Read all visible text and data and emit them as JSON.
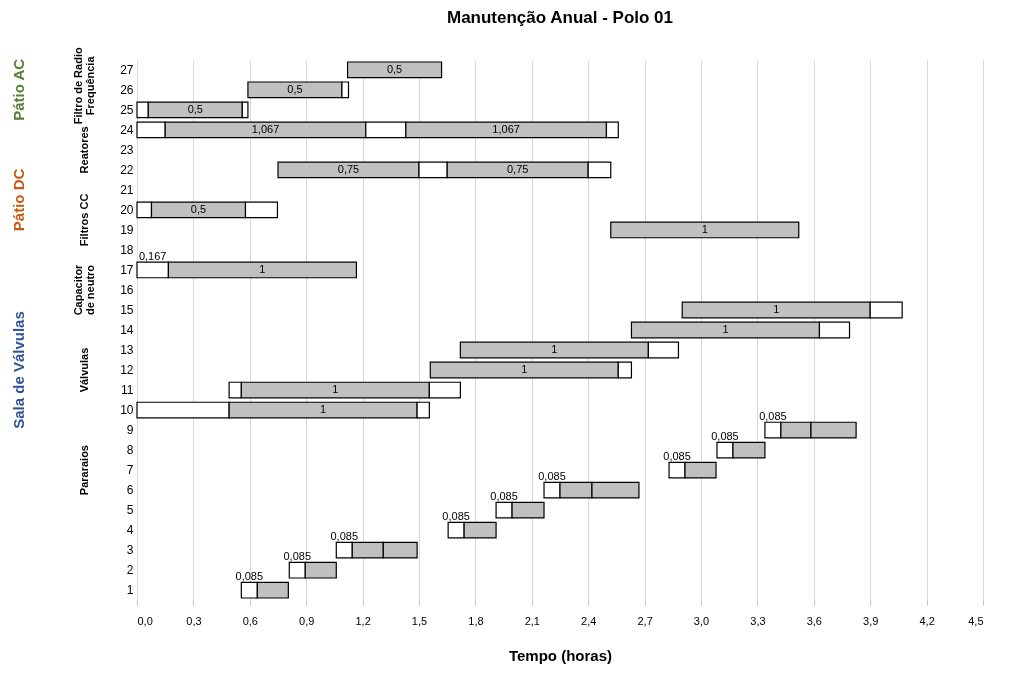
{
  "chart_data": {
    "type": "bar",
    "orientation": "horizontal",
    "title": "Manutenção Anual - Polo 01",
    "xlabel": "Tempo (horas)",
    "categories": [
      "27",
      "26",
      "25",
      "24",
      "23",
      "22",
      "21",
      "20",
      "19",
      "18",
      "17",
      "16",
      "15",
      "14",
      "13",
      "12",
      "11",
      "10",
      "9",
      "8",
      "7",
      "6",
      "5",
      "4",
      "3",
      "2",
      "1"
    ],
    "series": [
      {
        "color": "#ffffff",
        "base": [
          null,
          null,
          0,
          0,
          null,
          null,
          null,
          0,
          null,
          null,
          0,
          null,
          null,
          null,
          null,
          null,
          0.49,
          0,
          3.34,
          3.085,
          2.83,
          2.165,
          1.91,
          1.655,
          1.06,
          0.81,
          0.555
        ],
        "values": [
          null,
          null,
          0.06,
          0.15,
          null,
          null,
          null,
          0.077,
          null,
          null,
          0.167,
          null,
          null,
          null,
          null,
          null,
          0.065,
          0.49,
          0.085,
          0.085,
          0.085,
          0.085,
          0.085,
          0.085,
          0.085,
          0.085,
          0.085
        ],
        "value_labels": [
          null,
          null,
          null,
          null,
          null,
          null,
          null,
          null,
          null,
          null,
          "0,167",
          null,
          null,
          null,
          null,
          null,
          null,
          null,
          "0,085",
          "0,085",
          "0,085",
          "0,085",
          "0,085",
          "0,085",
          "0,085",
          "0,085",
          "0,085"
        ]
      },
      {
        "color": "#c0c0c0",
        "base": [
          1.12,
          0.59,
          0.06,
          0.15,
          null,
          0.75,
          null,
          0.077,
          2.52,
          null,
          0.167,
          null,
          2.9,
          2.63,
          1.72,
          1.56,
          0.555,
          0.49,
          3.425,
          3.17,
          2.915,
          2.25,
          1.995,
          1.74,
          1.145,
          0.895,
          0.64
        ],
        "values": [
          0.5,
          0.5,
          0.5,
          1.067,
          null,
          0.75,
          null,
          0.5,
          1,
          null,
          1,
          null,
          1,
          1,
          1,
          1,
          1,
          1,
          0.16,
          0.17,
          0.165,
          0.17,
          0.17,
          0.17,
          0.165,
          0.165,
          0.165
        ],
        "value_labels": [
          "0,5",
          "0,5",
          "0,5",
          "1,067",
          null,
          "0,75",
          null,
          "0,5",
          "1",
          null,
          "1",
          null,
          "1",
          "1",
          "1",
          "1",
          "1",
          "1",
          null,
          null,
          null,
          null,
          null,
          null,
          null,
          null,
          null
        ]
      },
      {
        "color": "#c0c0c0",
        "base": [
          null,
          null,
          null,
          null,
          null,
          null,
          null,
          null,
          null,
          null,
          null,
          null,
          null,
          null,
          null,
          null,
          null,
          null,
          3.585,
          null,
          null,
          2.42,
          null,
          null,
          1.31,
          null,
          null
        ],
        "values": [
          null,
          null,
          null,
          null,
          null,
          null,
          null,
          null,
          null,
          null,
          null,
          null,
          null,
          null,
          null,
          null,
          null,
          null,
          0.24,
          null,
          null,
          0.25,
          null,
          null,
          0.18,
          null,
          null
        ]
      },
      {
        "color": "#ffffff",
        "base": [
          null,
          1.09,
          0.56,
          1.217,
          null,
          1.5,
          null,
          0.577,
          null,
          null,
          null,
          null,
          3.9,
          3.63,
          2.72,
          2.56,
          1.555,
          1.49,
          null,
          null,
          null,
          null,
          null,
          null,
          null,
          null,
          null
        ],
        "values": [
          null,
          0.035,
          0.03,
          0.213,
          null,
          0.15,
          null,
          0.17,
          null,
          null,
          null,
          null,
          0.17,
          0.16,
          0.16,
          0.07,
          0.165,
          0.065,
          null,
          null,
          null,
          null,
          null,
          null,
          null,
          null,
          null
        ]
      },
      {
        "color": "#c0c0c0",
        "base": [
          null,
          null,
          null,
          1.43,
          null,
          1.65,
          null,
          null,
          null,
          null,
          null,
          null,
          null,
          null,
          null,
          null,
          null,
          null,
          null,
          null,
          null,
          null,
          null,
          null,
          null,
          null,
          null
        ],
        "values": [
          null,
          null,
          null,
          1.067,
          null,
          0.75,
          null,
          null,
          null,
          null,
          null,
          null,
          null,
          null,
          null,
          null,
          null,
          null,
          null,
          null,
          null,
          null,
          null,
          null,
          null,
          null,
          null
        ],
        "value_labels": [
          null,
          null,
          null,
          "1,067",
          null,
          "0,75",
          null,
          null,
          null,
          null,
          null,
          null,
          null,
          null,
          null,
          null,
          null,
          null,
          null,
          null,
          null,
          null,
          null,
          null,
          null,
          null,
          null
        ]
      },
      {
        "color": "#ffffff",
        "base": [
          null,
          null,
          null,
          2.497,
          null,
          2.4,
          null,
          null,
          null,
          null,
          null,
          null,
          null,
          null,
          null,
          null,
          null,
          null,
          null,
          null,
          null,
          null,
          null,
          null,
          null,
          null,
          null
        ],
        "values": [
          null,
          null,
          null,
          0.063,
          null,
          0.12,
          null,
          null,
          null,
          null,
          null,
          null,
          null,
          null,
          null,
          null,
          null,
          null,
          null,
          null,
          null,
          null,
          null,
          null,
          null,
          null,
          null
        ]
      }
    ],
    "xlim": [
      0,
      4.5
    ],
    "xticks": [
      {
        "value": 0,
        "label": "0,0"
      },
      {
        "value": 0.3,
        "label": "0,3"
      },
      {
        "value": 0.6,
        "label": "0,6"
      },
      {
        "value": 0.9,
        "label": "0,9"
      },
      {
        "value": 1.2,
        "label": "1,2"
      },
      {
        "value": 1.5,
        "label": "1,5"
      },
      {
        "value": 1.8,
        "label": "1,8"
      },
      {
        "value": 2.1,
        "label": "2,1"
      },
      {
        "value": 2.4,
        "label": "2,4"
      },
      {
        "value": 2.7,
        "label": "2,7"
      },
      {
        "value": 3.0,
        "label": "3,0"
      },
      {
        "value": 3.3,
        "label": "3,3"
      },
      {
        "value": 3.6,
        "label": "3,6"
      },
      {
        "value": 3.9,
        "label": "3,9"
      },
      {
        "value": 4.2,
        "label": "4,2"
      },
      {
        "value": 4.5,
        "label": "4,5"
      }
    ],
    "grid": "x",
    "annotations": [
      "Pátio AC",
      "Pátio DC",
      "Sala de Válvulas",
      "Filtro de Radio Frequência",
      "Reatores",
      "Filtros CC",
      "Capacitor de neutro",
      "Válvulas",
      "Pararaios"
    ]
  }
}
